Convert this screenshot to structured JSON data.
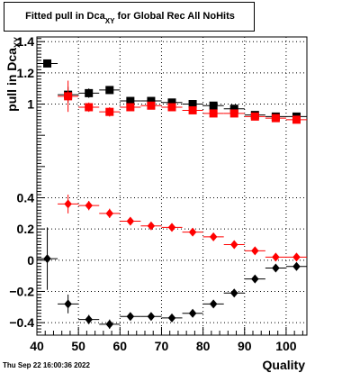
{
  "title": {
    "main": "Fitted pull in Dca",
    "subscript": "XY",
    "suffix": " for Global Rec All NoHits"
  },
  "footer": {
    "timestamp": "Thu Sep 22 16:00:36 2022"
  },
  "chart_data": {
    "type": "scatter",
    "title": "Fitted pull in Dca_XY for Global Rec All NoHits",
    "xlabel": "Quality",
    "ylabel": "pull in Dca_XY",
    "xlim": [
      40,
      105
    ],
    "ylim": [
      -0.48,
      1.43
    ],
    "x_ticks": [
      40,
      50,
      60,
      70,
      80,
      90,
      100
    ],
    "x_tick_labels": [
      "40",
      "50",
      "60",
      "70",
      "80",
      "90",
      "100"
    ],
    "y_ticks": [
      -0.4,
      -0.2,
      0,
      0.2,
      0.4,
      1,
      1.2,
      1.4
    ],
    "y_tick_labels": [
      "−0.4",
      "−0.2",
      "0",
      "0.2",
      "0.4",
      "1",
      "1.2",
      "1.4"
    ],
    "grid": true,
    "colors": {
      "black": "#000000",
      "red": "#ff0000"
    },
    "series": [
      {
        "marker": "square",
        "color": "#000000",
        "x": [
          42.5,
          47.5,
          52.5,
          57.5,
          62.5,
          67.5,
          72.5,
          77.5,
          82.5,
          87.5,
          92.5,
          97.5,
          102.5
        ],
        "y": [
          1.26,
          1.06,
          1.07,
          1.09,
          1.02,
          1.02,
          1.01,
          1.0,
          0.99,
          0.97,
          0.93,
          0.92,
          0.92
        ],
        "yerr": [
          0.01,
          0.05,
          0.03,
          0.02,
          0.01,
          0.01,
          0.01,
          0.01,
          0.01,
          0.01,
          0.01,
          0.01,
          0.01
        ]
      },
      {
        "marker": "square",
        "color": "#ff0000",
        "x": [
          47.5,
          52.5,
          57.5,
          62.5,
          67.5,
          72.5,
          77.5,
          82.5,
          87.5,
          92.5,
          97.5,
          102.5
        ],
        "y": [
          1.05,
          0.98,
          0.95,
          0.98,
          0.99,
          0.98,
          0.96,
          0.94,
          0.94,
          0.92,
          0.91,
          0.9
        ],
        "yerr": [
          0.1,
          0.03,
          0.03,
          0.02,
          0.01,
          0.01,
          0.01,
          0.01,
          0.01,
          0.01,
          0.01,
          0.01
        ]
      },
      {
        "marker": "diamond",
        "color": "#ff0000",
        "x": [
          47.5,
          52.5,
          57.5,
          62.5,
          67.5,
          72.5,
          77.5,
          82.5,
          87.5,
          92.5,
          97.5,
          102.5
        ],
        "y": [
          0.36,
          0.35,
          0.3,
          0.25,
          0.22,
          0.21,
          0.18,
          0.15,
          0.1,
          0.06,
          0.02,
          0.02
        ],
        "yerr": [
          0.06,
          0.03,
          0.03,
          0.02,
          0.01,
          0.01,
          0.01,
          0.01,
          0.01,
          0.01,
          0.01,
          0.01
        ]
      },
      {
        "marker": "diamond",
        "color": "#000000",
        "x": [
          42.5,
          47.5,
          52.5,
          57.5,
          62.5,
          67.5,
          72.5,
          77.5,
          82.5,
          87.5,
          92.5,
          97.5,
          102.5
        ],
        "y": [
          0.01,
          -0.28,
          -0.38,
          -0.41,
          -0.36,
          -0.36,
          -0.37,
          -0.34,
          -0.28,
          -0.21,
          -0.12,
          -0.05,
          -0.04
        ],
        "yerr": [
          0.2,
          0.06,
          0.03,
          0.03,
          0.02,
          0.02,
          0.01,
          0.01,
          0.01,
          0.01,
          0.01,
          0.01,
          0.01
        ]
      }
    ]
  }
}
